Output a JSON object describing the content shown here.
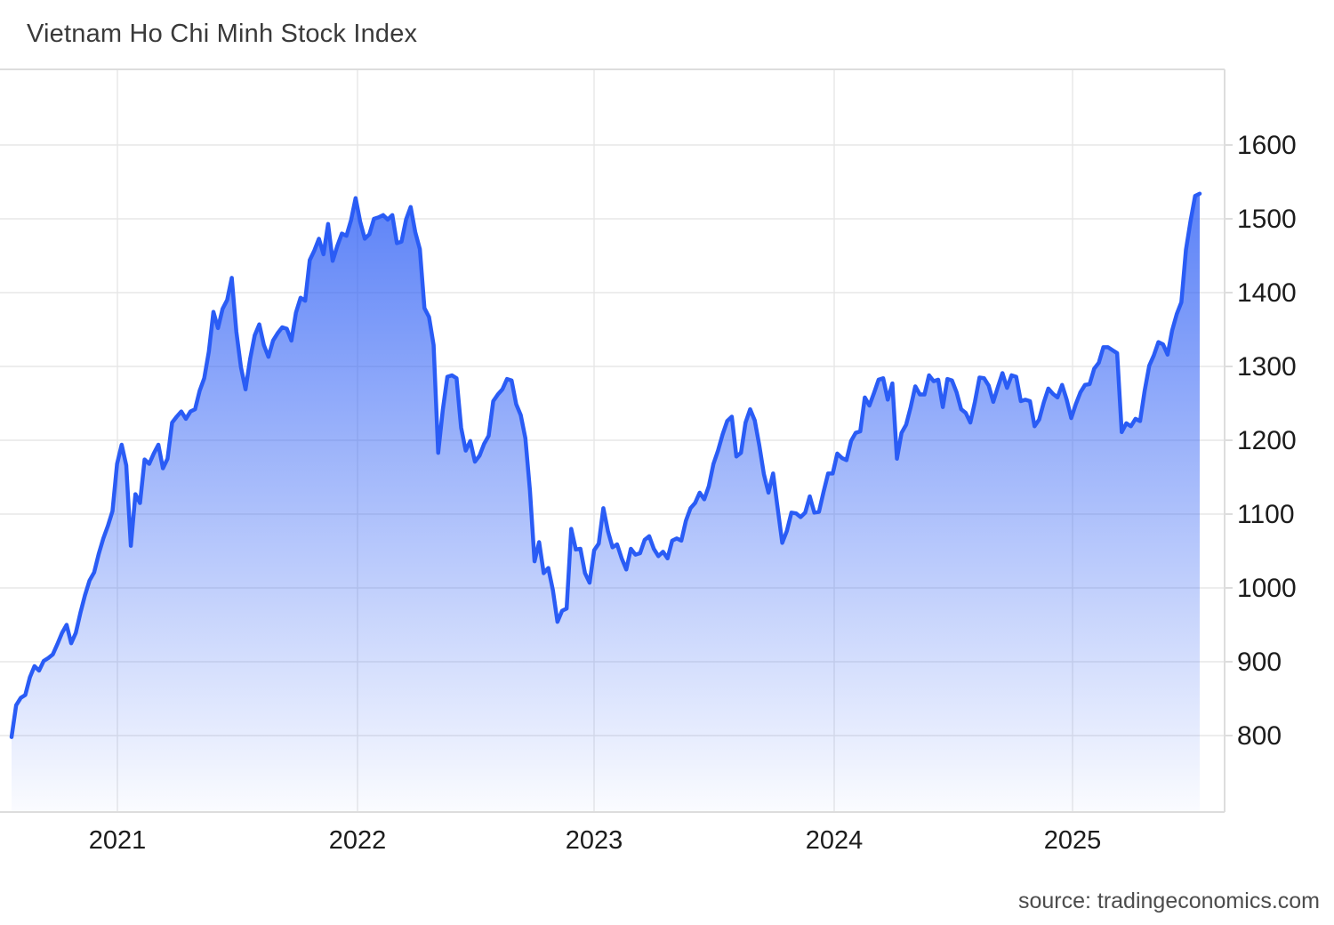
{
  "source": {
    "text": "source: tradingeconomics.com"
  },
  "chart_data": {
    "type": "area",
    "title": "Vietnam Ho Chi Minh Stock Index",
    "xlabel": "",
    "ylabel": "",
    "legend": "none",
    "grid": "on",
    "x_labels": [
      "2021",
      "2022",
      "2023",
      "2024",
      "2025"
    ],
    "y_ticks": [
      1600,
      1500,
      1400,
      1300,
      1200,
      1100,
      1000,
      900,
      800
    ],
    "ylim": [
      697,
      1702
    ],
    "frequency": "weekly",
    "series": [
      {
        "name": "VN-Index",
        "values": [
          798,
          841,
          851,
          855,
          879,
          894,
          888,
          901,
          905,
          910,
          924,
          939,
          950,
          925,
          939,
          966,
          990,
          1010,
          1021,
          1046,
          1067,
          1084,
          1104,
          1168,
          1194,
          1166,
          1057,
          1127,
          1115,
          1174,
          1168,
          1182,
          1194,
          1162,
          1175,
          1224,
          1232,
          1239,
          1229,
          1239,
          1242,
          1267,
          1284,
          1320,
          1374,
          1352,
          1378,
          1390,
          1420,
          1347,
          1299,
          1269,
          1310,
          1342,
          1357,
          1329,
          1313,
          1335,
          1345,
          1353,
          1351,
          1335,
          1373,
          1393,
          1389,
          1444,
          1457,
          1473,
          1452,
          1493,
          1443,
          1463,
          1480,
          1477,
          1498,
          1528,
          1496,
          1473,
          1479,
          1500,
          1502,
          1505,
          1499,
          1505,
          1467,
          1469,
          1499,
          1516,
          1482,
          1459,
          1379,
          1367,
          1329,
          1183,
          1241,
          1286,
          1288,
          1284,
          1217,
          1186,
          1199,
          1171,
          1179,
          1195,
          1206,
          1253,
          1262,
          1269,
          1283,
          1281,
          1249,
          1234,
          1203,
          1132,
          1036,
          1062,
          1020,
          1027,
          997,
          954,
          969,
          972,
          1080,
          1052,
          1053,
          1020,
          1007,
          1051,
          1060,
          1108,
          1077,
          1055,
          1059,
          1040,
          1025,
          1053,
          1045,
          1047,
          1065,
          1070,
          1053,
          1043,
          1049,
          1040,
          1064,
          1067,
          1064,
          1091,
          1108,
          1115,
          1129,
          1120,
          1138,
          1168,
          1186,
          1208,
          1226,
          1232,
          1178,
          1183,
          1224,
          1242,
          1227,
          1193,
          1154,
          1129,
          1155,
          1108,
          1061,
          1077,
          1102,
          1101,
          1096,
          1102,
          1124,
          1102,
          1103,
          1130,
          1155,
          1155,
          1182,
          1176,
          1173,
          1199,
          1210,
          1212,
          1258,
          1247,
          1264,
          1282,
          1284,
          1255,
          1277,
          1175,
          1210,
          1221,
          1245,
          1273,
          1262,
          1262,
          1288,
          1280,
          1282,
          1245,
          1283,
          1281,
          1265,
          1242,
          1237,
          1224,
          1252,
          1285,
          1284,
          1274,
          1252,
          1272,
          1291,
          1271,
          1288,
          1286,
          1253,
          1255,
          1253,
          1219,
          1228,
          1251,
          1270,
          1263,
          1258,
          1275,
          1255,
          1230,
          1249,
          1265,
          1275,
          1276,
          1297,
          1305,
          1326,
          1326,
          1322,
          1318,
          1211,
          1223,
          1219,
          1229,
          1226,
          1267,
          1301,
          1315,
          1333,
          1330,
          1316,
          1349,
          1371,
          1387,
          1458,
          1497,
          1531,
          1534
        ]
      }
    ],
    "colors": {
      "line": "#2a5cf5",
      "fill": "#2a5cf5",
      "grid": "#e7e7e7",
      "border": "#dddddd",
      "tick_label": "#1c1c1c",
      "title": "#3a3a3a",
      "source": "#4c4c4c"
    }
  }
}
